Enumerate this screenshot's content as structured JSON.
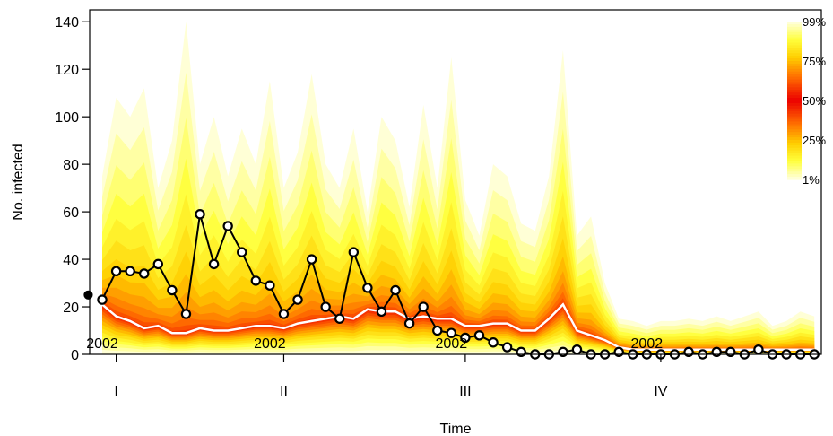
{
  "chart_data": {
    "type": "fan",
    "title": "",
    "xlabel": "Time",
    "ylabel": "No. infected",
    "ylim": [
      0,
      145
    ],
    "yticks": [
      0,
      20,
      40,
      60,
      80,
      100,
      120,
      140
    ],
    "xlim": [
      -0.9,
      51.5
    ],
    "xticks": [
      {
        "x": 1,
        "label": "I"
      },
      {
        "x": 13,
        "label": "II"
      },
      {
        "x": 26,
        "label": "III"
      },
      {
        "x": 40,
        "label": "IV"
      }
    ],
    "year_labels": [
      {
        "x": 0,
        "label": "2002"
      },
      {
        "x": 12,
        "label": "2002"
      },
      {
        "x": 25,
        "label": "2002"
      },
      {
        "x": 39,
        "label": "2002"
      }
    ],
    "initial_point": {
      "x": -1,
      "y": 25
    },
    "observed": [
      23,
      35,
      35,
      34,
      38,
      27,
      17,
      59,
      38,
      54,
      43,
      31,
      29,
      17,
      23,
      40,
      20,
      15,
      43,
      28,
      18,
      27,
      13,
      20,
      10,
      9,
      7,
      8,
      5,
      3,
      1,
      0,
      0,
      1,
      2,
      0,
      0,
      1,
      0,
      0,
      0,
      0,
      1,
      0,
      1,
      1,
      0,
      2,
      0,
      0,
      0,
      0
    ],
    "median": [
      21,
      16,
      14,
      11,
      12,
      9,
      9,
      11,
      10,
      10,
      11,
      12,
      12,
      11,
      13,
      14,
      15,
      16,
      15,
      19,
      18,
      18,
      15,
      16,
      15,
      15,
      12,
      12,
      13,
      13,
      10,
      10,
      15,
      21,
      10,
      8,
      6,
      3,
      2,
      2,
      2,
      2,
      2,
      2,
      2,
      2,
      2,
      2,
      2,
      2,
      2,
      2
    ],
    "q01": [
      0,
      0,
      0,
      0,
      0,
      0,
      0,
      0,
      0,
      0,
      0,
      0,
      0,
      0,
      0,
      0,
      0,
      0,
      0,
      0,
      0,
      0,
      0,
      0,
      0,
      0,
      0,
      0,
      0,
      0,
      0,
      0,
      0,
      0,
      0,
      0,
      0,
      0,
      0,
      0,
      0,
      0,
      0,
      0,
      0,
      0,
      0,
      0,
      0,
      0,
      0,
      0
    ],
    "q99": [
      75,
      108,
      100,
      112,
      70,
      90,
      140,
      80,
      100,
      75,
      95,
      80,
      115,
      70,
      85,
      118,
      80,
      70,
      95,
      60,
      100,
      90,
      62,
      105,
      70,
      125,
      65,
      50,
      80,
      75,
      55,
      52,
      75,
      128,
      50,
      58,
      30,
      15,
      14,
      12,
      14,
      14,
      15,
      14,
      16,
      14,
      16,
      18,
      12,
      14,
      18,
      16
    ],
    "legend": {
      "labels": [
        "99%",
        "75%",
        "50%",
        "25%",
        "1%"
      ],
      "position": "top-right"
    }
  }
}
